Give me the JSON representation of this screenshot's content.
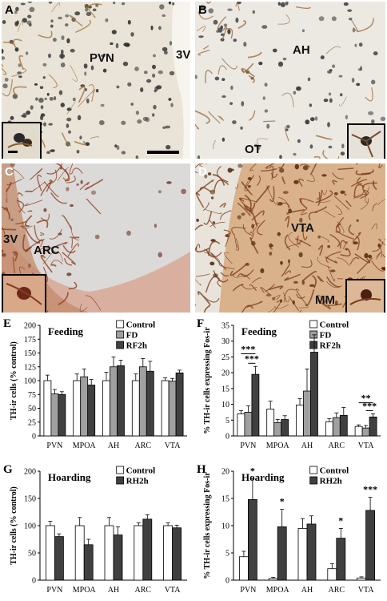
{
  "photos": {
    "A": {
      "label": "A",
      "regions": [
        "PVN",
        "3V"
      ]
    },
    "B": {
      "label": "B",
      "regions": [
        "AH",
        "OT"
      ]
    },
    "C": {
      "label": "C",
      "regions": [
        "3V",
        "ARC"
      ]
    },
    "D": {
      "label": "D",
      "regions": [
        "VTA",
        "MM"
      ]
    }
  },
  "chart_data": [
    {
      "panel": "E",
      "type": "bar",
      "title": "Feeding",
      "ylabel": "TH-ir cells (% control)",
      "ylim": [
        0,
        200
      ],
      "yticks": [
        0,
        25,
        50,
        75,
        100,
        125,
        150,
        175,
        200
      ],
      "categories": [
        "PVN",
        "MPOA",
        "AH",
        "ARC",
        "VTA"
      ],
      "series": [
        {
          "name": "Control",
          "color": "#ffffff",
          "values": [
            100,
            100,
            100,
            100,
            100
          ],
          "errors": [
            10,
            12,
            15,
            12,
            5
          ]
        },
        {
          "name": "FD",
          "color": "#a0a0a0",
          "values": [
            76,
            107,
            125,
            125,
            99
          ],
          "errors": [
            8,
            14,
            18,
            15,
            5
          ]
        },
        {
          "name": "RF2h",
          "color": "#404040",
          "values": [
            75,
            92,
            127,
            117,
            114
          ],
          "errors": [
            5,
            10,
            10,
            18,
            5
          ]
        }
      ],
      "annotations": []
    },
    {
      "panel": "F",
      "type": "bar",
      "title": "Feeding",
      "ylabel": "% TH-ir cells expressing Fos-ir",
      "ylim": [
        0,
        35
      ],
      "yticks": [
        0,
        5,
        10,
        15,
        20,
        25,
        30,
        35
      ],
      "categories": [
        "PVN",
        "MPOA",
        "AH",
        "ARC",
        "VTA"
      ],
      "series": [
        {
          "name": "Control",
          "color": "#ffffff",
          "values": [
            7,
            8.5,
            9.8,
            4.5,
            3
          ],
          "errors": [
            1,
            2.5,
            2,
            1,
            0.5
          ]
        },
        {
          "name": "FD",
          "color": "#a0a0a0",
          "values": [
            7.5,
            4.2,
            14.2,
            5.8,
            2.5
          ],
          "errors": [
            2,
            1,
            7,
            1.5,
            0.8
          ]
        },
        {
          "name": "RF2h",
          "color": "#404040",
          "values": [
            19.5,
            5.2,
            26.5,
            6.5,
            6
          ],
          "errors": [
            2.5,
            1.2,
            5.5,
            2.5,
            1
          ]
        }
      ],
      "annotations": [
        {
          "text": "***",
          "x1": 0,
          "s1": 0,
          "x2": 0,
          "s2": 2,
          "y": 26
        },
        {
          "text": "***",
          "x1": 0,
          "s1": 1,
          "x2": 0,
          "s2": 2,
          "y": 23
        },
        {
          "text": "**",
          "x1": 4,
          "s1": 0,
          "x2": 4,
          "s2": 2,
          "y": 10.5
        },
        {
          "text": "***",
          "x1": 4,
          "s1": 1,
          "x2": 4,
          "s2": 2,
          "y": 8
        }
      ]
    },
    {
      "panel": "G",
      "type": "bar",
      "title": "Hoarding",
      "ylabel": "TH-ir cells (% control)",
      "ylim": [
        0,
        200
      ],
      "yticks": [
        0,
        50,
        100,
        150,
        200
      ],
      "categories": [
        "PVN",
        "MPOA",
        "AH",
        "ARC",
        "VTA"
      ],
      "series": [
        {
          "name": "Control",
          "color": "#ffffff",
          "values": [
            100,
            100,
            100,
            100,
            100
          ],
          "errors": [
            8,
            15,
            15,
            5,
            5
          ]
        },
        {
          "name": "RH2h",
          "color": "#404040",
          "values": [
            80,
            65,
            83,
            112,
            96
          ],
          "errors": [
            5,
            10,
            15,
            8,
            5
          ]
        }
      ],
      "annotations": []
    },
    {
      "panel": "H",
      "type": "bar",
      "title": "Hoarding",
      "ylabel": "% TH-ir cells expressing Fos-ir",
      "ylim": [
        0,
        20
      ],
      "yticks": [
        0,
        5,
        10,
        15,
        20
      ],
      "categories": [
        "PVN",
        "MPOA",
        "AH",
        "ARC",
        "VTA"
      ],
      "series": [
        {
          "name": "Control",
          "color": "#ffffff",
          "values": [
            4.3,
            0.3,
            9.5,
            2.1,
            0.4
          ],
          "errors": [
            1,
            0.2,
            1.8,
            0.9,
            0.2
          ]
        },
        {
          "name": "RH2h",
          "color": "#404040",
          "values": [
            14.8,
            9.8,
            10.3,
            7.7,
            12.8
          ],
          "errors": [
            3.8,
            3.2,
            1.5,
            1.8,
            2.4
          ]
        }
      ],
      "annotations": [
        {
          "text": "*",
          "x1": 0,
          "s1": 1,
          "x2": 0,
          "s2": 1,
          "y": 19.2
        },
        {
          "text": "*",
          "x1": 1,
          "s1": 1,
          "x2": 1,
          "s2": 1,
          "y": 13.6
        },
        {
          "text": "*",
          "x1": 3,
          "s1": 1,
          "x2": 3,
          "s2": 1,
          "y": 10.1
        },
        {
          "text": "***",
          "x1": 4,
          "s1": 1,
          "x2": 4,
          "s2": 1,
          "y": 15.8
        }
      ]
    }
  ]
}
